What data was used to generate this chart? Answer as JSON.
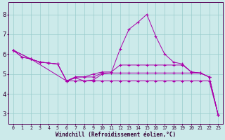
{
  "xlabel": "Windchill (Refroidissement éolien,°C)",
  "background_color": "#cceaea",
  "line_color": "#aa00aa",
  "grid_color": "#99cccc",
  "xlim": [
    -0.5,
    23.5
  ],
  "ylim": [
    2.5,
    8.6
  ],
  "yticks": [
    3,
    4,
    5,
    6,
    7,
    8
  ],
  "xticks": [
    0,
    1,
    2,
    3,
    4,
    5,
    6,
    7,
    8,
    9,
    10,
    11,
    12,
    13,
    14,
    15,
    16,
    17,
    18,
    19,
    20,
    21,
    22,
    23
  ],
  "lines": [
    {
      "x": [
        0,
        1,
        2,
        3,
        4,
        5,
        6,
        7,
        8,
        9,
        10,
        11,
        12,
        13,
        14,
        15,
        16,
        17,
        18,
        19,
        20,
        21,
        22,
        23
      ],
      "y": [
        6.2,
        5.85,
        5.75,
        5.6,
        5.55,
        5.5,
        4.65,
        4.8,
        4.65,
        4.7,
        5.0,
        5.05,
        6.25,
        7.25,
        7.6,
        8.0,
        6.9,
        6.0,
        5.6,
        5.5,
        5.1,
        5.05,
        4.85,
        2.95
      ]
    },
    {
      "x": [
        0,
        1,
        2,
        3,
        4,
        5,
        6,
        7,
        8,
        9,
        10,
        11,
        12,
        13,
        14,
        15,
        16,
        17,
        18,
        19,
        20,
        21,
        22,
        23
      ],
      "y": [
        6.2,
        5.85,
        5.75,
        5.6,
        5.55,
        5.5,
        4.65,
        4.85,
        4.85,
        5.0,
        5.1,
        5.1,
        5.45,
        5.45,
        5.45,
        5.45,
        5.45,
        5.45,
        5.45,
        5.45,
        5.1,
        5.05,
        4.85,
        2.95
      ]
    },
    {
      "x": [
        0,
        2,
        3,
        4,
        5,
        6,
        7,
        8,
        9,
        10,
        11,
        12,
        13,
        14,
        15,
        16,
        17,
        18,
        19,
        20,
        21,
        22,
        23
      ],
      "y": [
        6.2,
        5.75,
        5.6,
        5.55,
        5.5,
        4.65,
        4.85,
        4.85,
        4.85,
        5.05,
        5.05,
        5.05,
        5.05,
        5.05,
        5.05,
        5.05,
        5.05,
        5.05,
        5.05,
        5.05,
        5.05,
        4.85,
        2.95
      ]
    },
    {
      "x": [
        0,
        2,
        6,
        7,
        8,
        9,
        10,
        11,
        12,
        13,
        14,
        15,
        16,
        17,
        18,
        19,
        20,
        21,
        22,
        23
      ],
      "y": [
        6.2,
        5.75,
        4.65,
        4.65,
        4.65,
        4.65,
        4.65,
        4.65,
        4.65,
        4.65,
        4.65,
        4.65,
        4.65,
        4.65,
        4.65,
        4.65,
        4.65,
        4.65,
        4.65,
        2.95
      ]
    }
  ]
}
